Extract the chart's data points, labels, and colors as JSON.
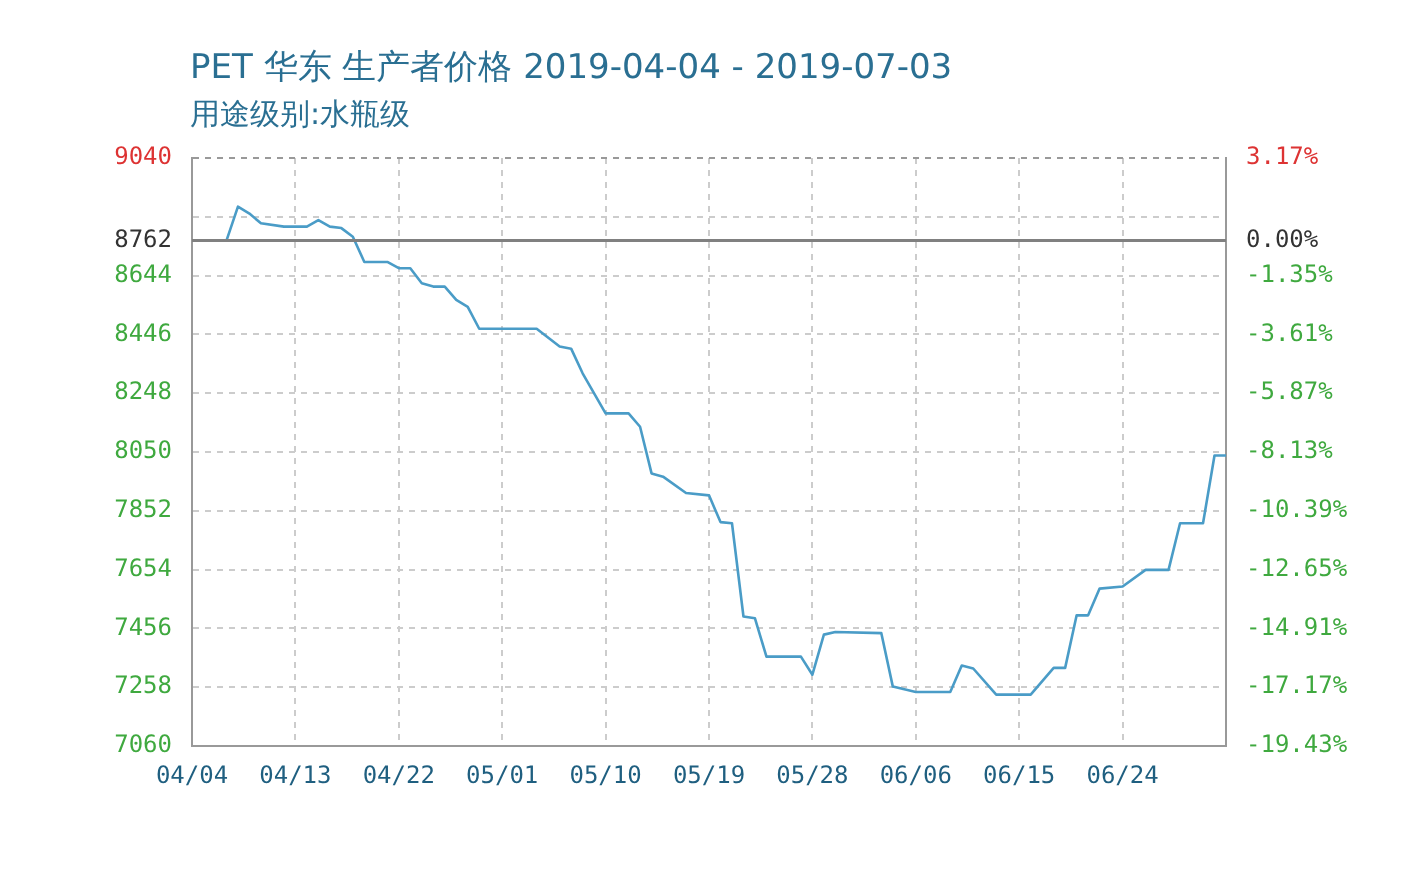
{
  "chart_data": {
    "type": "line",
    "title": "PET 华东 生产者价格 2019-04-04 - 2019-07-03",
    "subtitle": "用途级别:水瓶级",
    "x": [
      "--04-04",
      "--04-07",
      "--04-08",
      "--04-09",
      "--04-10",
      "--04-12",
      "--04-14",
      "--04-15",
      "--04-16",
      "--04-17",
      "--04-18",
      "--04-19",
      "--04-21",
      "--04-22",
      "--04-23",
      "--04-24",
      "--04-25",
      "--04-26",
      "--04-27",
      "--04-28",
      "--04-29",
      "--05-04",
      "--05-06",
      "--05-07",
      "--05-08",
      "--05-10",
      "--05-12",
      "--05-13",
      "--05-14",
      "--05-15",
      "--05-17",
      "--05-19",
      "--05-20",
      "--05-21",
      "--05-22",
      "--05-23",
      "--05-24",
      "--05-27",
      "--05-28",
      "--05-29",
      "--05-30",
      "--06-03",
      "--06-04",
      "--06-06",
      "--06-09",
      "--06-10",
      "--06-11",
      "--06-13",
      "--06-16",
      "--06-18",
      "--06-19",
      "--06-20",
      "--06-21",
      "--06-22",
      "--06-24",
      "--06-26",
      "--06-28",
      "--06-29",
      "--07-01",
      "--07-02",
      "--07-03"
    ],
    "series": [
      {
        "color": "#4a9cc7",
        "values": [
          8762,
          8762,
          8876,
          8853,
          8820,
          8809,
          8809,
          8831,
          8809,
          8804,
          8775,
          8690,
          8690,
          8669,
          8669,
          8618,
          8607,
          8607,
          8562,
          8539,
          8465,
          8465,
          8405,
          8398,
          8315,
          8180,
          8180,
          8135,
          7978,
          7967,
          7912,
          7904,
          7814,
          7810,
          7496,
          7490,
          7361,
          7361,
          7300,
          7435,
          7444,
          7440,
          7260,
          7242,
          7242,
          7331,
          7321,
          7233,
          7233,
          7323,
          7323,
          7500,
          7500,
          7590,
          7597,
          7653,
          7653,
          7810,
          7810,
          8038,
          8038
        ]
      }
    ],
    "xlim": [
      "--04-04",
      "--07-03"
    ],
    "xticks": [
      {
        "value": "--04-04",
        "label": "04/04"
      },
      {
        "value": "--04-13",
        "label": "04/13"
      },
      {
        "value": "--04-22",
        "label": "04/22"
      },
      {
        "value": "--05-01",
        "label": "05/01"
      },
      {
        "value": "--05-10",
        "label": "05/10"
      },
      {
        "value": "--05-19",
        "label": "05/19"
      },
      {
        "value": "--05-28",
        "label": "05/28"
      },
      {
        "value": "--06-06",
        "label": "06/06"
      },
      {
        "value": "--06-15",
        "label": "06/15"
      },
      {
        "value": "--06-24",
        "label": "06/24"
      }
    ],
    "ylim": [
      7060,
      9040
    ],
    "yticks": [
      7060,
      7258,
      7456,
      7654,
      7852,
      8050,
      8248,
      8446,
      8644,
      {
        "value": 8842,
        "label": null
      },
      8762,
      9040
    ],
    "y2lim": [
      -19.43,
      3.17
    ],
    "y2ticks": [
      {
        "value": -19.43,
        "label": "-19.43%"
      },
      {
        "value": -17.17,
        "label": "-17.17%"
      },
      {
        "value": -14.91,
        "label": "-14.91%"
      },
      {
        "value": -12.65,
        "label": "-12.65%"
      },
      {
        "value": -10.39,
        "label": "-10.39%"
      },
      {
        "value": -8.13,
        "label": "-8.13%"
      },
      {
        "value": -5.87,
        "label": "-5.87%"
      },
      {
        "value": -3.61,
        "label": "-3.61%"
      },
      {
        "value": -1.35,
        "label": "-1.35%"
      },
      {
        "value": 0,
        "label": "0.00%"
      },
      {
        "value": 3.17,
        "label": "3.17%"
      }
    ],
    "ref_lines": [
      {
        "axis": "y",
        "value": 8762,
        "color": "#808080"
      }
    ],
    "grid": true,
    "legend": false,
    "marker": "none",
    "line_style": "solid"
  }
}
